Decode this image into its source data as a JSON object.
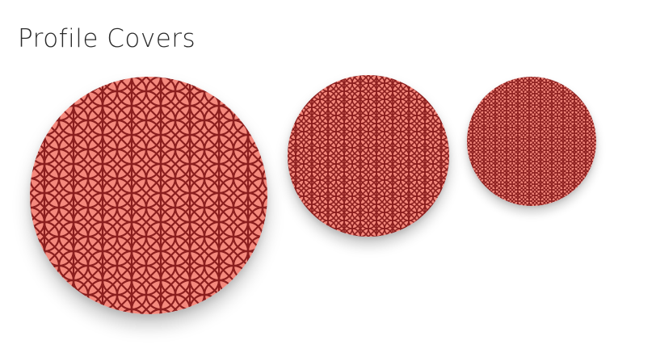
{
  "header": {
    "title": "Profile Covers"
  },
  "colors": {
    "pattern_fill": "#f4897d",
    "pattern_stroke": "#8b1e1e"
  },
  "covers": [
    {
      "size": "large",
      "pattern": "interlocking-circles"
    },
    {
      "size": "medium",
      "pattern": "interlocking-circles"
    },
    {
      "size": "small",
      "pattern": "interlocking-circles"
    }
  ]
}
